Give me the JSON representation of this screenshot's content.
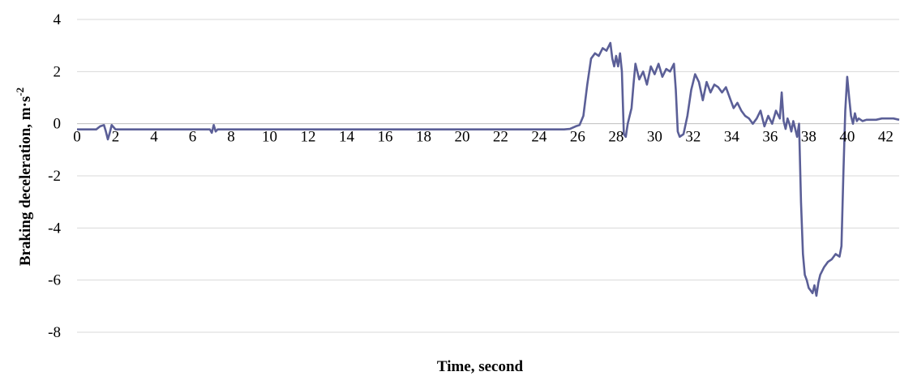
{
  "chart_data": {
    "type": "line",
    "title": "",
    "xlabel": "Time, second",
    "ylabel_main": "Braking deceleration, m·s",
    "ylabel_sup": "-2",
    "xlim": [
      0,
      42.7
    ],
    "ylim": [
      -8,
      4
    ],
    "x_ticks": [
      0,
      2,
      4,
      6,
      8,
      10,
      12,
      14,
      16,
      18,
      20,
      22,
      24,
      26,
      28,
      30,
      32,
      34,
      36,
      38,
      40,
      42
    ],
    "y_ticks": [
      4,
      2,
      0,
      -2,
      -4,
      -6,
      -8
    ],
    "grid": "horizontal",
    "legend": "none",
    "color": "#5b5f97",
    "series": [
      {
        "x": [
          0,
          1.0,
          1.2,
          1.4,
          1.5,
          1.6,
          1.7,
          1.8,
          2.0,
          6.9,
          7.0,
          7.1,
          7.2,
          7.3,
          25.3,
          25.6,
          25.9,
          26.1,
          26.3,
          26.5,
          26.7,
          26.9,
          27.1,
          27.3,
          27.5,
          27.7,
          27.8,
          27.9,
          28.0,
          28.1,
          28.2,
          28.3,
          28.4,
          28.5,
          28.6,
          28.8,
          28.9,
          29.0,
          29.2,
          29.4,
          29.6,
          29.8,
          30.0,
          30.2,
          30.4,
          30.6,
          30.8,
          31.0,
          31.1,
          31.2,
          31.3,
          31.5,
          31.7,
          31.9,
          32.1,
          32.3,
          32.5,
          32.7,
          32.9,
          33.1,
          33.3,
          33.5,
          33.7,
          33.9,
          34.1,
          34.3,
          34.5,
          34.7,
          34.9,
          35.1,
          35.3,
          35.5,
          35.7,
          35.9,
          36.1,
          36.3,
          36.5,
          36.6,
          36.7,
          36.8,
          36.9,
          37.0,
          37.1,
          37.2,
          37.3,
          37.4,
          37.5,
          37.6,
          37.7,
          37.8,
          37.9,
          38.0,
          38.1,
          38.2,
          38.3,
          38.4,
          38.5,
          38.6,
          38.8,
          39.0,
          39.2,
          39.4,
          39.6,
          39.7,
          39.8,
          39.9,
          40.0,
          40.1,
          40.2,
          40.3,
          40.4,
          40.5,
          40.6,
          40.8,
          41.0,
          41.2,
          41.5,
          41.8,
          42.1,
          42.4,
          42.7
        ],
        "y": [
          -0.22,
          -0.22,
          -0.1,
          -0.05,
          -0.3,
          -0.6,
          -0.35,
          -0.05,
          -0.22,
          -0.22,
          -0.35,
          -0.05,
          -0.3,
          -0.22,
          -0.22,
          -0.2,
          -0.1,
          -0.05,
          0.3,
          1.5,
          2.5,
          2.7,
          2.6,
          2.9,
          2.8,
          3.1,
          2.5,
          2.2,
          2.6,
          2.2,
          2.7,
          2.0,
          -0.4,
          -0.5,
          0.0,
          0.6,
          1.5,
          2.3,
          1.7,
          2.0,
          1.5,
          2.2,
          1.9,
          2.3,
          1.8,
          2.1,
          2.0,
          2.3,
          1.3,
          -0.3,
          -0.5,
          -0.4,
          0.3,
          1.3,
          1.9,
          1.6,
          0.9,
          1.6,
          1.2,
          1.5,
          1.4,
          1.2,
          1.4,
          1.0,
          0.6,
          0.8,
          0.5,
          0.3,
          0.2,
          0.0,
          0.2,
          0.5,
          -0.1,
          0.3,
          0.0,
          0.5,
          0.2,
          1.2,
          0.1,
          -0.2,
          0.2,
          0.0,
          -0.3,
          0.1,
          -0.2,
          -0.5,
          0.0,
          -3.0,
          -5.0,
          -5.8,
          -6.0,
          -6.3,
          -6.4,
          -6.5,
          -6.2,
          -6.6,
          -6.1,
          -5.8,
          -5.5,
          -5.3,
          -5.2,
          -5.0,
          -5.1,
          -4.7,
          -2.0,
          0.5,
          1.8,
          1.0,
          0.3,
          0.0,
          0.4,
          0.1,
          0.2,
          0.1,
          0.15,
          0.15,
          0.15,
          0.2,
          0.2,
          0.2,
          0.15
        ]
      }
    ]
  }
}
